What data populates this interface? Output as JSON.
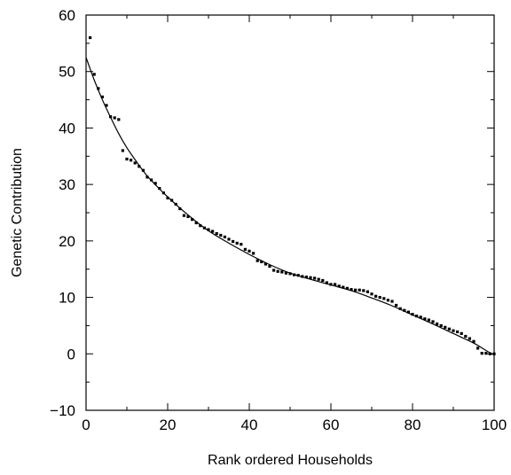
{
  "chart_data": {
    "type": "scatter",
    "title": "",
    "xlabel": "Rank ordered Households",
    "ylabel": "Genetic Contribution",
    "xlim": [
      0,
      100
    ],
    "ylim": [
      -10,
      60
    ],
    "xticks": [
      0,
      20,
      40,
      60,
      80,
      100
    ],
    "yticks": [
      -10,
      0,
      10,
      20,
      30,
      40,
      50,
      60
    ],
    "grid": false,
    "legend": "none",
    "series": [
      {
        "kind": "points",
        "x": [
          1,
          2,
          3,
          4,
          5,
          6,
          7,
          8,
          9,
          10,
          11,
          12,
          13,
          14,
          15,
          16,
          17,
          18,
          19,
          20,
          21,
          22,
          23,
          24,
          25,
          26,
          27,
          28,
          29,
          30,
          31,
          32,
          33,
          34,
          35,
          36,
          37,
          38,
          39,
          40,
          41,
          42,
          43,
          44,
          45,
          46,
          47,
          48,
          49,
          50,
          51,
          52,
          53,
          54,
          55,
          56,
          57,
          58,
          59,
          60,
          61,
          62,
          63,
          64,
          65,
          66,
          67,
          68,
          69,
          70,
          71,
          72,
          73,
          74,
          75,
          76,
          77,
          78,
          79,
          80,
          81,
          82,
          83,
          84,
          85,
          86,
          87,
          88,
          89,
          90,
          91,
          92,
          93,
          94,
          95,
          96,
          97,
          98,
          99,
          100
        ],
        "y": [
          56,
          49.5,
          47,
          45.5,
          44,
          42,
          41.8,
          41.5,
          36,
          34.5,
          34.3,
          33.8,
          33.2,
          32.5,
          31.3,
          30.8,
          30.2,
          29.3,
          28.5,
          27.6,
          27.2,
          26.5,
          25.7,
          24.5,
          24.3,
          23.8,
          23.2,
          22.7,
          22.3,
          22,
          21.7,
          21.3,
          21,
          20.7,
          20.3,
          19.9,
          19.6,
          19.4,
          18.5,
          18.2,
          17.8,
          16.5,
          16.3,
          15.9,
          15.5,
          14.8,
          14.6,
          14.5,
          14.3,
          14.2,
          14,
          13.9,
          13.7,
          13.6,
          13.5,
          13.4,
          13.2,
          13,
          12.6,
          12.3,
          12.3,
          12,
          11.8,
          11.6,
          11.4,
          11.3,
          11.3,
          11.2,
          11,
          10.6,
          10.2,
          10,
          9.8,
          9.5,
          9.3,
          8.6,
          8,
          7.7,
          7.4,
          7,
          6.7,
          6.5,
          6.2,
          6,
          5.7,
          5.3,
          5,
          4.7,
          4.4,
          4.1,
          3.9,
          3.6,
          3.1,
          2.7,
          2.2,
          1,
          0.1,
          0.1,
          0,
          0
        ]
      },
      {
        "kind": "fitted-curve",
        "x": [
          0,
          2,
          4,
          6,
          8,
          10,
          12,
          15,
          20,
          25,
          30,
          35,
          40,
          45,
          50,
          55,
          60,
          65,
          70,
          75,
          80,
          85,
          90,
          95,
          98,
          100
        ],
        "y": [
          52.5,
          48.5,
          45,
          41.9,
          39,
          36.5,
          34.4,
          31.5,
          27.8,
          24.6,
          21.8,
          19.6,
          17.6,
          15.8,
          14.3,
          13.2,
          12.2,
          11.2,
          9.9,
          8.5,
          6.9,
          5.3,
          3.6,
          1.9,
          0.6,
          -0.2
        ]
      }
    ]
  }
}
